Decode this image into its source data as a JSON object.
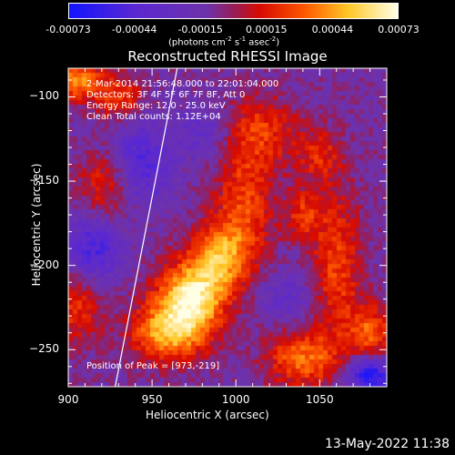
{
  "colorbar": {
    "tick_labels": [
      "-0.00073",
      "-0.00044",
      "-0.00015",
      "0.00015",
      "0.00044",
      "0.00073"
    ],
    "units_pre": "(photons cm",
    "units_exp1": "-2",
    "units_mid": " s",
    "units_exp2": "-1",
    "units_mid2": " asec",
    "units_exp3": "-2",
    "units_post": ")"
  },
  "title": "Reconstructed RHESSI Image",
  "info": {
    "time": "2-Mar-2014 21:56:48.000 to 22:01:04.000",
    "detectors": "Detectors: 3F 4F 5F 6F 7F 8F, Att 0",
    "energy": "Energy Range: 12.0 - 25.0 keV",
    "clean": "Clean     Total counts: 1.12E+04",
    "peak": "Position of Peak = [973,-219]"
  },
  "footer": "13-May-2022 11:38",
  "chart_data": {
    "type": "heatmap",
    "title": "Reconstructed RHESSI Image",
    "xlabel": "Heliocentric X (arcsec)",
    "ylabel": "Heliocentric Y (arcsec)",
    "xlim": [
      900,
      1090
    ],
    "ylim": [
      -272,
      -83
    ],
    "x_ticks": [
      900,
      950,
      1000,
      1050
    ],
    "y_ticks": [
      -100,
      -150,
      -200,
      -250
    ],
    "x_tick_labels": [
      "900",
      "950",
      "1000",
      "1050"
    ],
    "y_tick_labels": [
      "−100",
      "−150",
      "−200",
      "−250"
    ],
    "colorbar_range": [
      -0.00073,
      0.00073
    ],
    "peak": [
      973,
      -219
    ],
    "limb_line": [
      [
        965,
        -83
      ],
      [
        928,
        -272
      ]
    ],
    "blobs": [
      {
        "x": 973,
        "y": -219,
        "amp": 0.00073,
        "sx": 14,
        "sy": 14
      },
      {
        "x": 960,
        "y": -240,
        "amp": 0.00055,
        "sx": 16,
        "sy": 12
      },
      {
        "x": 990,
        "y": -195,
        "amp": 0.0005,
        "sx": 12,
        "sy": 14
      },
      {
        "x": 1005,
        "y": -165,
        "amp": 0.00035,
        "sx": 12,
        "sy": 25
      },
      {
        "x": 1015,
        "y": -120,
        "amp": 0.0003,
        "sx": 15,
        "sy": 15
      },
      {
        "x": 925,
        "y": -150,
        "amp": 0.0004,
        "sx": 12,
        "sy": 16
      },
      {
        "x": 905,
        "y": -90,
        "amp": 0.0005,
        "sx": 10,
        "sy": 8
      },
      {
        "x": 930,
        "y": -100,
        "amp": 0.00035,
        "sx": 10,
        "sy": 10
      },
      {
        "x": 1060,
        "y": -200,
        "amp": 0.00035,
        "sx": 10,
        "sy": 30
      },
      {
        "x": 1080,
        "y": -240,
        "amp": 0.0004,
        "sx": 10,
        "sy": 12
      },
      {
        "x": 1040,
        "y": -255,
        "amp": 0.00045,
        "sx": 15,
        "sy": 12
      },
      {
        "x": 905,
        "y": -225,
        "amp": 0.0003,
        "sx": 10,
        "sy": 15
      },
      {
        "x": 1050,
        "y": -135,
        "amp": 0.00025,
        "sx": 10,
        "sy": 12
      },
      {
        "x": 1040,
        "y": -170,
        "amp": 0.0003,
        "sx": 8,
        "sy": 10
      },
      {
        "x": 940,
        "y": -140,
        "amp": -0.00045,
        "sx": 14,
        "sy": 18
      },
      {
        "x": 915,
        "y": -190,
        "amp": -0.0004,
        "sx": 12,
        "sy": 14
      },
      {
        "x": 1080,
        "y": -265,
        "amp": -0.0006,
        "sx": 10,
        "sy": 8
      },
      {
        "x": 980,
        "y": -120,
        "amp": -0.0002,
        "sx": 12,
        "sy": 12
      },
      {
        "x": 1030,
        "y": -220,
        "amp": -0.0002,
        "sx": 12,
        "sy": 12
      }
    ]
  }
}
